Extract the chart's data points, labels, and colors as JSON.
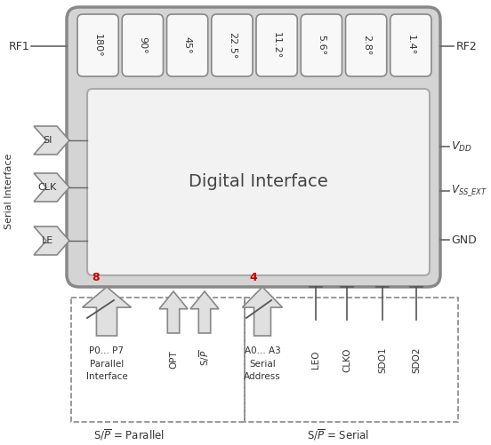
{
  "fig_width": 5.52,
  "fig_height": 5.01,
  "bg_color": "#ffffff",
  "phase_bits": [
    "180°",
    "90°",
    "45°",
    "22.5°",
    "11.2°",
    "5.6°",
    "2.8°",
    "1.4°"
  ],
  "rf1_label": "RF1",
  "rf2_label": "RF2",
  "gnd_label": "GND",
  "serial_label": "Serial Interface",
  "si_label": "SI",
  "clk_label": "CLK",
  "le_label": "LE",
  "digital_interface_text": "Digital Interface",
  "arrow_fill": "#e0e0e0",
  "arrow_edge": "#888888",
  "num8_color": "#cc0000",
  "num4_color": "#cc0000",
  "main_fc": "#d4d4d4",
  "main_ec": "#888888",
  "inner_fc": "#f2f2f2",
  "inner_ec": "#aaaaaa",
  "phasebox_fc": "#f8f8f8",
  "phasebox_ec": "#888888",
  "text_color": "#333333",
  "line_color": "#666666"
}
